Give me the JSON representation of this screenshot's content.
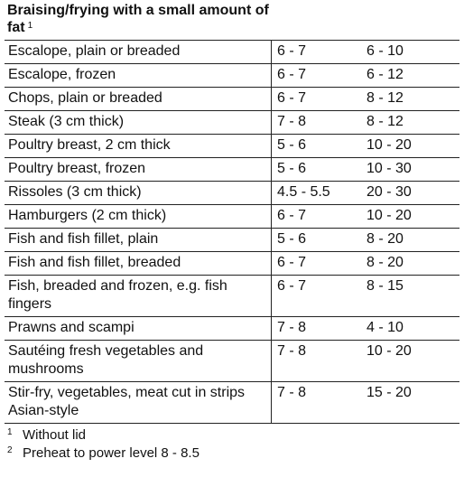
{
  "section": {
    "title": "Braising/frying with a small amount of fat",
    "title_note": "1"
  },
  "rows": [
    {
      "food": "Escalope, plain or breaded",
      "level": "6 - 7",
      "time": "6 - 10"
    },
    {
      "food": "Escalope, frozen",
      "level": "6 - 7",
      "time": "6 - 12"
    },
    {
      "food": "Chops, plain or breaded",
      "level": "6 - 7",
      "time": "8 - 12"
    },
    {
      "food": "Steak (3 cm thick)",
      "level": "7 - 8",
      "time": "8 - 12"
    },
    {
      "food": "Poultry breast, 2 cm thick",
      "level": "5 - 6",
      "time": "10 - 20"
    },
    {
      "food": "Poultry breast, frozen",
      "level": "5 - 6",
      "time": "10 - 30"
    },
    {
      "food": "Rissoles (3 cm thick)",
      "level": "4.5 - 5.5",
      "time": "20 - 30"
    },
    {
      "food": "Hamburgers (2 cm thick)",
      "level": "6 - 7",
      "time": "10 - 20"
    },
    {
      "food": "Fish and fish fillet, plain",
      "level": "5 - 6",
      "time": "8 - 20"
    },
    {
      "food": "Fish and fish fillet, breaded",
      "level": "6 - 7",
      "time": "8 - 20"
    },
    {
      "food": "Fish, breaded and frozen, e.g. fish fingers",
      "level": "6 - 7",
      "time": "8 - 15"
    },
    {
      "food": "Prawns and scampi",
      "level": "7 - 8",
      "time": "4 - 10"
    },
    {
      "food": "Sautéing fresh vegetables and mushrooms",
      "level": "7 - 8",
      "time": "10 - 20"
    },
    {
      "food": "Stir-fry, vegetables, meat cut in strips Asian-style",
      "level": "7 - 8",
      "time": "15 - 20"
    }
  ],
  "footnotes": [
    {
      "marker": "1",
      "text": "Without lid"
    },
    {
      "marker": "2",
      "text": "Preheat to power level 8 - 8.5"
    }
  ]
}
